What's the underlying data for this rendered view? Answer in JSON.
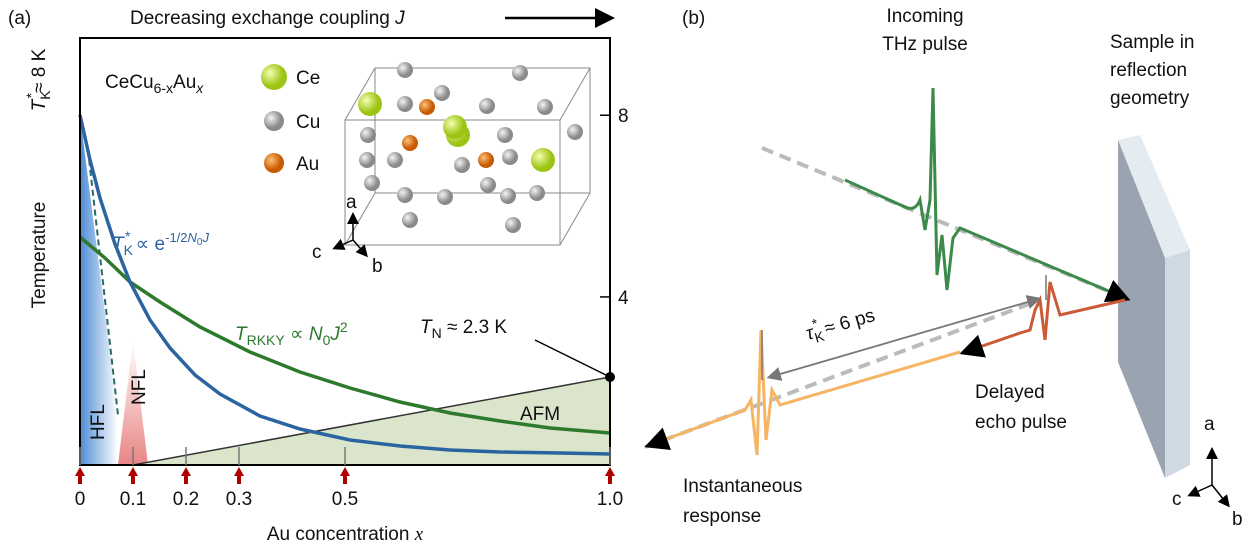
{
  "panel_a": {
    "label": "(a)",
    "top_axis_title": [
      "Decreasing exchange coupling ",
      "J"
    ],
    "y_axis_title": "Temperature",
    "tk_label": [
      "T",
      "K",
      "*",
      "≈ 8 K"
    ],
    "formula": [
      "CeCu",
      "6-x",
      "Au",
      "x"
    ],
    "legend": [
      "Ce",
      "Cu",
      "Au"
    ],
    "crystal_axes": [
      "a",
      "b",
      "c"
    ],
    "tk_formula": [
      "T",
      "K",
      "*",
      " ∝ e",
      "-1/2",
      "N",
      "0",
      "J"
    ],
    "trkky_formula": [
      "T",
      "RKKY",
      " ∝ ",
      "N",
      "0",
      "J",
      "2"
    ],
    "tn_label": [
      "T",
      "N",
      " ≈ 2.3 K"
    ],
    "regions": [
      "AFM",
      "HFL",
      "NFL"
    ],
    "x_axis_title": [
      "Au concentration ",
      "x"
    ],
    "xlim": [
      0,
      1
    ],
    "xticks": [
      0,
      0.1,
      0.2,
      0.3,
      0.5,
      {
        "value": 1,
        "label": "1.0"
      }
    ],
    "ylim": [
      0.3,
      9.7
    ],
    "yticks": [
      4,
      8
    ]
  },
  "panel_b": {
    "label": "(b)",
    "incoming": [
      "Incoming",
      "THz pulse"
    ],
    "sample": [
      "Sample in",
      "reflection",
      "geometry"
    ],
    "delay": [
      "τ",
      "K",
      "*",
      " ≈ 6 ps"
    ],
    "echo": [
      "Delayed",
      "echo pulse"
    ],
    "instant": [
      "Instantaneous",
      "response"
    ],
    "axes": [
      "a",
      "b",
      "c"
    ]
  }
}
